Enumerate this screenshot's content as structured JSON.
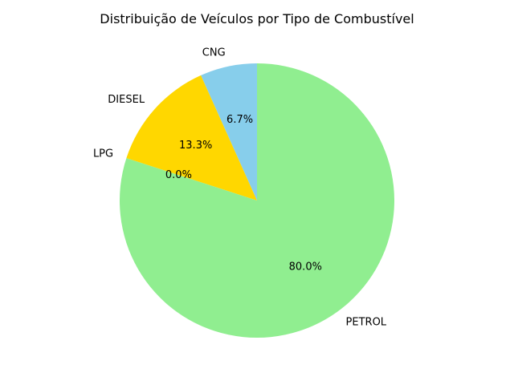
{
  "chart_data": {
    "type": "pie",
    "title": "Distribuição de Veículos por Tipo de Combustível",
    "start_angle_deg": 90,
    "direction": "counterclockwise",
    "slices": [
      {
        "label": "CNG",
        "value": 6.7,
        "pct_label": "6.7%",
        "color": "#87ceeb"
      },
      {
        "label": "DIESEL",
        "value": 13.3,
        "pct_label": "13.3%",
        "color": "#ffd700"
      },
      {
        "label": "LPG",
        "value": 0.0,
        "pct_label": "0.0%",
        "color": "#f08080"
      },
      {
        "label": "PETROL",
        "value": 80.0,
        "pct_label": "80.0%",
        "color": "#90ee90"
      }
    ]
  }
}
